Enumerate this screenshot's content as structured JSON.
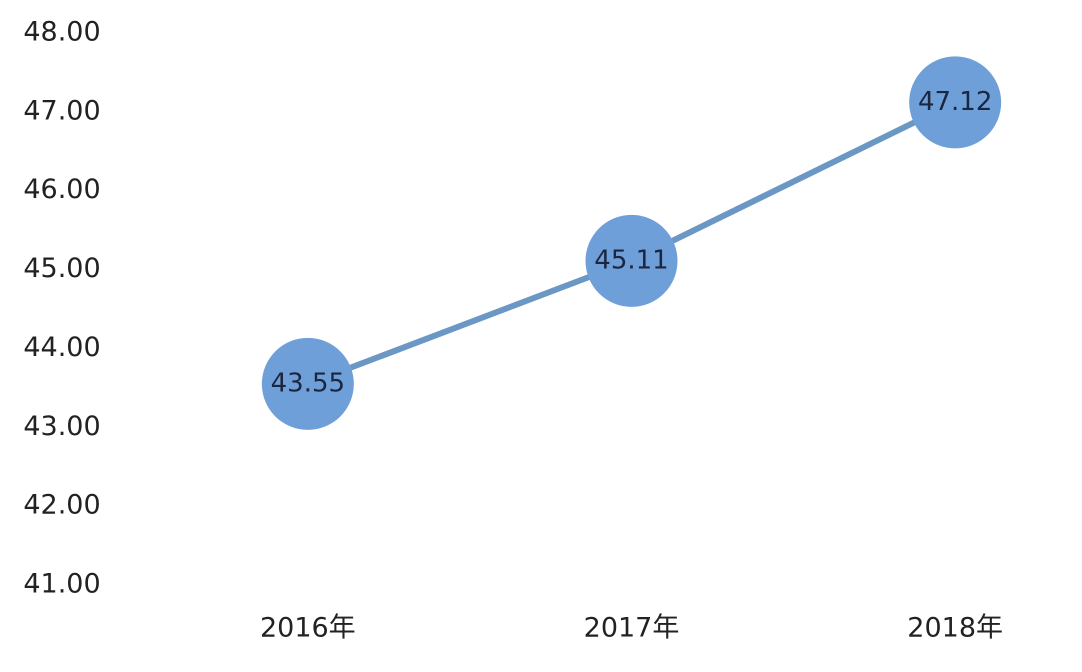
{
  "chart_data": {
    "type": "line",
    "categories": [
      "2016年",
      "2017年",
      "2018年"
    ],
    "series": [
      {
        "name": null,
        "color": "#6f9fd8",
        "line_color": "#6a97c4",
        "values": [
          43.55,
          45.11,
          47.12
        ]
      }
    ],
    "ylim": [
      41,
      48
    ],
    "yticks": [
      {
        "value": 41,
        "label": "41.00"
      },
      {
        "value": 42,
        "label": "42.00"
      },
      {
        "value": 43,
        "label": "43.00"
      },
      {
        "value": 44,
        "label": "44.00"
      },
      {
        "value": 45,
        "label": "45.00"
      },
      {
        "value": 46,
        "label": "46.00"
      },
      {
        "value": 47,
        "label": "47.00"
      },
      {
        "value": 48,
        "label": "48.00"
      }
    ],
    "grid": false
  }
}
